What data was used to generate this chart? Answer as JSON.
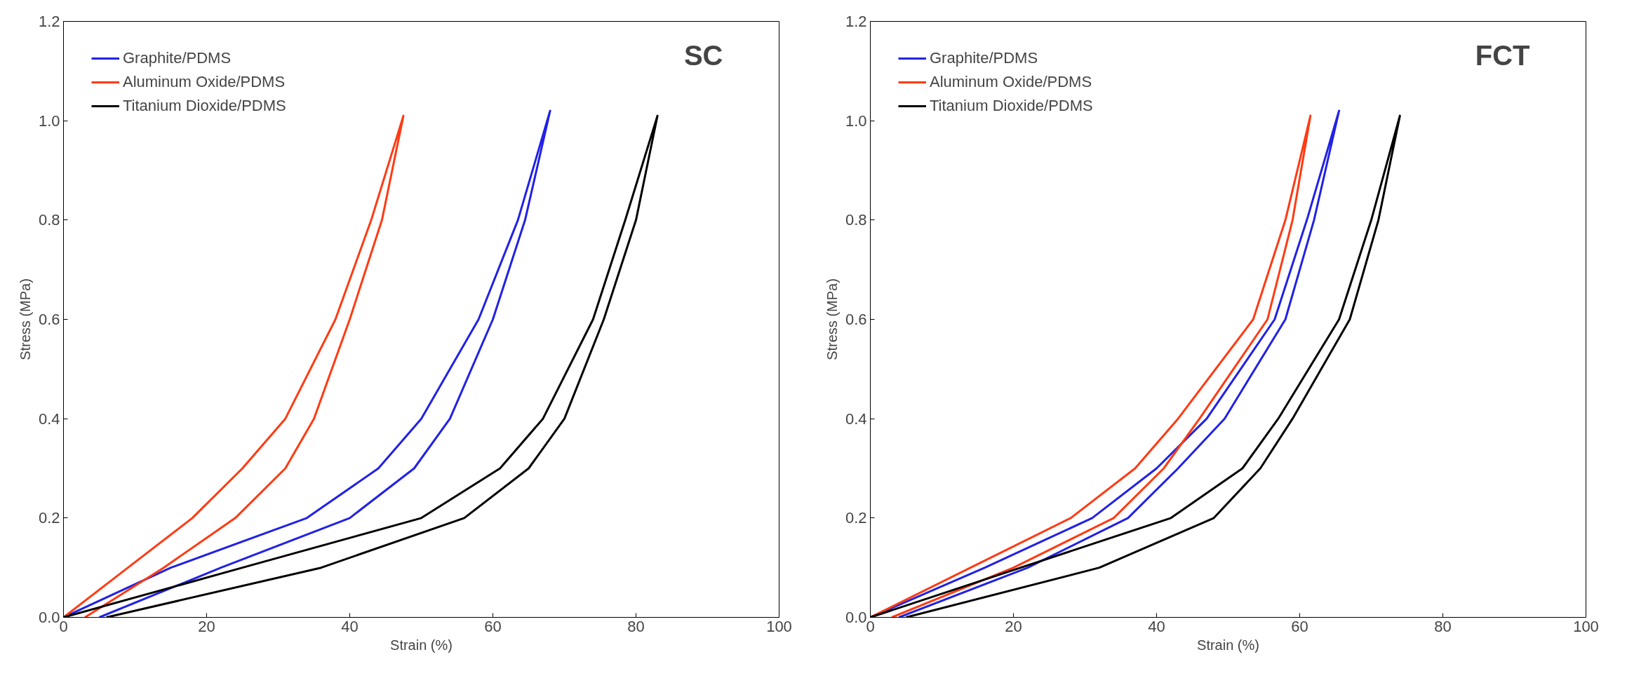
{
  "chart_data": [
    {
      "type": "line",
      "xlabel": "Strain (%)",
      "ylabel": "Stress (MPa)",
      "annotations": [
        "SC"
      ],
      "xlim": [
        0,
        100
      ],
      "ylim": [
        0,
        1.2
      ],
      "xticks": [
        0,
        20,
        40,
        60,
        80,
        100
      ],
      "yticks": [
        {
          "value": 0,
          "label": "0.0"
        },
        {
          "value": 0.2,
          "label": "0.2"
        },
        {
          "value": 0.4,
          "label": "0.4"
        },
        {
          "value": 0.6,
          "label": "0.6"
        },
        {
          "value": 0.8,
          "label": "0.8"
        },
        {
          "value": 1,
          "label": "1.0"
        },
        {
          "value": 1.2,
          "label": "1.2"
        }
      ],
      "grid": false,
      "legend": "top left",
      "line_style": "solid",
      "marker": "none",
      "series": [
        {
          "name": "Graphite/PDMS",
          "color": "#2121e6",
          "x": [
            0,
            15,
            34,
            44,
            50,
            58,
            63.5,
            68,
            64.5,
            60,
            54,
            49,
            40,
            22,
            5
          ],
          "values": [
            0,
            0.1,
            0.2,
            0.3,
            0.4,
            0.6,
            0.8,
            1.02,
            0.8,
            0.6,
            0.4,
            0.3,
            0.2,
            0.1,
            0
          ]
        },
        {
          "name": "Aluminum Oxide/PDMS",
          "color": "#ff3a12",
          "x": [
            0,
            9,
            18,
            25,
            31,
            38,
            43,
            47.5,
            44.5,
            40,
            35,
            31,
            24,
            14,
            3
          ],
          "values": [
            0,
            0.1,
            0.2,
            0.3,
            0.4,
            0.6,
            0.8,
            1.01,
            0.8,
            0.6,
            0.4,
            0.3,
            0.2,
            0.1,
            0
          ]
        },
        {
          "name": "Titanium Dioxide/PDMS",
          "color": "#000000",
          "x": [
            0,
            25,
            50,
            61,
            67,
            74,
            78.5,
            83,
            80,
            75.5,
            70,
            65,
            56,
            36,
            6
          ],
          "values": [
            0,
            0.1,
            0.2,
            0.3,
            0.4,
            0.6,
            0.8,
            1.01,
            0.8,
            0.6,
            0.4,
            0.3,
            0.2,
            0.1,
            0
          ]
        }
      ]
    },
    {
      "type": "line",
      "xlabel": "Strain (%)",
      "ylabel": "Stress (MPa)",
      "annotations": [
        "FCT"
      ],
      "xlim": [
        0,
        100
      ],
      "ylim": [
        0,
        1.2
      ],
      "xticks": [
        0,
        20,
        40,
        60,
        80,
        100
      ],
      "yticks": [
        {
          "value": 0,
          "label": "0.0"
        },
        {
          "value": 0.2,
          "label": "0.2"
        },
        {
          "value": 0.4,
          "label": "0.4"
        },
        {
          "value": 0.6,
          "label": "0.6"
        },
        {
          "value": 0.8,
          "label": "0.8"
        },
        {
          "value": 1,
          "label": "1.0"
        },
        {
          "value": 1.2,
          "label": "1.2"
        }
      ],
      "grid": false,
      "legend": "top left",
      "line_style": "solid",
      "marker": "none",
      "series": [
        {
          "name": "Graphite/PDMS",
          "color": "#2121e6",
          "x": [
            0,
            16,
            31,
            40,
            47,
            56.5,
            61,
            65.5,
            62,
            58,
            49.5,
            43,
            36,
            22,
            4
          ],
          "values": [
            0,
            0.1,
            0.2,
            0.3,
            0.4,
            0.6,
            0.8,
            1.02,
            0.8,
            0.6,
            0.4,
            0.3,
            0.2,
            0.1,
            0
          ]
        },
        {
          "name": "Aluminum Oxide/PDMS",
          "color": "#ff3a12",
          "x": [
            0,
            14,
            28,
            37,
            43,
            53.5,
            58,
            61.5,
            59,
            55.5,
            46,
            41,
            34,
            20,
            3
          ],
          "values": [
            0,
            0.1,
            0.2,
            0.3,
            0.4,
            0.6,
            0.8,
            1.01,
            0.8,
            0.6,
            0.4,
            0.3,
            0.2,
            0.1,
            0
          ]
        },
        {
          "name": "Titanium Dioxide/PDMS",
          "color": "#000000",
          "x": [
            0,
            21,
            42,
            52,
            57,
            65.5,
            70,
            74,
            71,
            67,
            59,
            54.5,
            48,
            32,
            5
          ],
          "values": [
            0,
            0.1,
            0.2,
            0.3,
            0.4,
            0.6,
            0.8,
            1.01,
            0.8,
            0.6,
            0.4,
            0.3,
            0.2,
            0.1,
            0
          ]
        }
      ]
    }
  ]
}
